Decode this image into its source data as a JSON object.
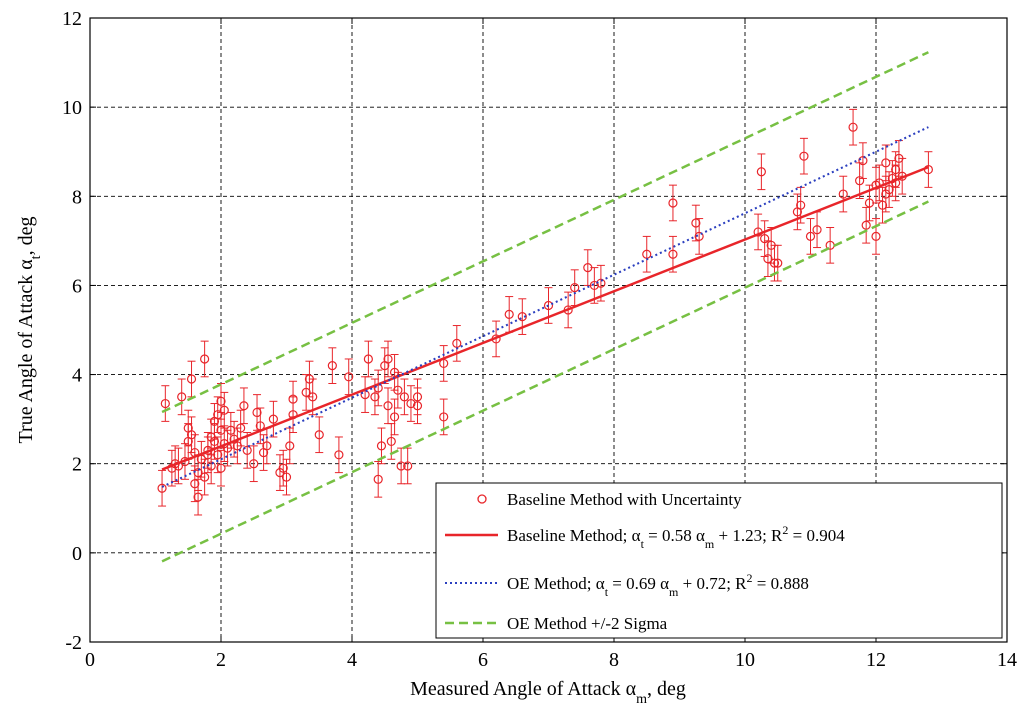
{
  "chart_data": {
    "type": "scatter",
    "title": "",
    "xlabel": "Measured Angle of Attack α",
    "xlabel_sub": "m",
    "xlabel_suffix": ", deg",
    "ylabel": "True Angle of Attack α",
    "ylabel_sub": "t",
    "ylabel_suffix": ", deg",
    "xlim": [
      0,
      14
    ],
    "ylim": [
      -2,
      12
    ],
    "xticks": [
      0,
      2,
      4,
      6,
      8,
      10,
      12,
      14
    ],
    "yticks": [
      -2,
      0,
      2,
      4,
      6,
      8,
      10,
      12
    ],
    "grid": true,
    "legend_position": "bottom-right",
    "colors": {
      "baseline": "#e8252a",
      "oe": "#2b3fbf",
      "sigma": "#77c043",
      "grid": "#000000"
    },
    "legend": [
      {
        "key": "points",
        "text": "Baseline Method with Uncertainty"
      },
      {
        "key": "baseline",
        "text": "Baseline Method; α = 0.58 α + 1.23; R = 0.904",
        "segments": [
          "Baseline Method; α",
          "t",
          " =   0.58 α",
          "m",
          " +   1.23; R",
          "2",
          " =  0.904"
        ]
      },
      {
        "key": "oe",
        "text": "OE Method; α = 0.69 α + 0.72; R = 0.888",
        "segments": [
          "OE Method; α",
          "t",
          " =   0.69 α",
          "m",
          " +   0.72; R",
          "2",
          " =  0.888"
        ]
      },
      {
        "key": "sigma",
        "text": "OE Method +/-2 Sigma"
      }
    ],
    "series": [
      {
        "name": "Baseline Method with Uncertainty",
        "style": "circle-errorbar",
        "error": 0.4,
        "points": [
          [
            1.1,
            1.45
          ],
          [
            1.15,
            3.35
          ],
          [
            1.25,
            1.9
          ],
          [
            1.3,
            2.0
          ],
          [
            1.35,
            1.95
          ],
          [
            1.4,
            3.5
          ],
          [
            1.45,
            2.05
          ],
          [
            1.5,
            2.5
          ],
          [
            1.5,
            2.8
          ],
          [
            1.55,
            2.65
          ],
          [
            1.55,
            3.9
          ],
          [
            1.6,
            1.55
          ],
          [
            1.6,
            2.25
          ],
          [
            1.65,
            1.25
          ],
          [
            1.65,
            1.8
          ],
          [
            1.7,
            2.1
          ],
          [
            1.75,
            4.35
          ],
          [
            1.75,
            1.7
          ],
          [
            1.8,
            2.3
          ],
          [
            1.8,
            2.2
          ],
          [
            1.85,
            2.6
          ],
          [
            1.85,
            1.95
          ],
          [
            1.9,
            2.5
          ],
          [
            1.9,
            2.95
          ],
          [
            1.95,
            3.1
          ],
          [
            1.95,
            2.2
          ],
          [
            2.0,
            3.4
          ],
          [
            2.0,
            2.75
          ],
          [
            2.0,
            1.9
          ],
          [
            2.05,
            2.45
          ],
          [
            2.05,
            3.2
          ],
          [
            2.1,
            2.35
          ],
          [
            2.15,
            2.75
          ],
          [
            2.2,
            2.55
          ],
          [
            2.25,
            2.4
          ],
          [
            2.3,
            2.8
          ],
          [
            2.35,
            3.3
          ],
          [
            2.4,
            2.3
          ],
          [
            2.5,
            2.0
          ],
          [
            2.55,
            3.15
          ],
          [
            2.6,
            2.85
          ],
          [
            2.65,
            2.25
          ],
          [
            2.7,
            2.4
          ],
          [
            2.8,
            3.0
          ],
          [
            2.9,
            1.8
          ],
          [
            2.95,
            1.9
          ],
          [
            3.0,
            1.7
          ],
          [
            3.05,
            2.4
          ],
          [
            3.1,
            3.1
          ],
          [
            3.1,
            3.45
          ],
          [
            3.3,
            3.6
          ],
          [
            3.35,
            3.9
          ],
          [
            3.4,
            3.5
          ],
          [
            3.5,
            2.65
          ],
          [
            3.7,
            4.2
          ],
          [
            3.8,
            2.2
          ],
          [
            3.95,
            3.95
          ],
          [
            4.2,
            3.55
          ],
          [
            4.25,
            4.35
          ],
          [
            4.35,
            3.5
          ],
          [
            4.4,
            3.7
          ],
          [
            4.4,
            1.65
          ],
          [
            4.45,
            2.4
          ],
          [
            4.5,
            4.2
          ],
          [
            4.55,
            4.35
          ],
          [
            4.55,
            3.3
          ],
          [
            4.6,
            2.5
          ],
          [
            4.65,
            3.05
          ],
          [
            4.65,
            4.05
          ],
          [
            4.7,
            3.65
          ],
          [
            4.75,
            1.95
          ],
          [
            4.8,
            3.5
          ],
          [
            4.85,
            1.95
          ],
          [
            4.9,
            3.35
          ],
          [
            5.0,
            3.5
          ],
          [
            5.0,
            3.3
          ],
          [
            5.4,
            4.25
          ],
          [
            5.4,
            3.05
          ],
          [
            5.6,
            4.7
          ],
          [
            6.2,
            4.8
          ],
          [
            6.4,
            5.35
          ],
          [
            6.6,
            5.3
          ],
          [
            7.0,
            5.55
          ],
          [
            7.3,
            5.45
          ],
          [
            7.4,
            5.95
          ],
          [
            7.6,
            6.4
          ],
          [
            7.7,
            6.0
          ],
          [
            7.8,
            6.05
          ],
          [
            8.5,
            6.7
          ],
          [
            8.9,
            6.7
          ],
          [
            8.9,
            7.85
          ],
          [
            9.25,
            7.4
          ],
          [
            9.3,
            7.1
          ],
          [
            10.2,
            7.2
          ],
          [
            10.25,
            8.55
          ],
          [
            10.3,
            7.05
          ],
          [
            10.35,
            6.6
          ],
          [
            10.4,
            6.9
          ],
          [
            10.45,
            6.5
          ],
          [
            10.5,
            6.5
          ],
          [
            10.8,
            7.65
          ],
          [
            10.85,
            7.8
          ],
          [
            10.9,
            8.9
          ],
          [
            11.0,
            7.1
          ],
          [
            11.1,
            7.25
          ],
          [
            11.3,
            6.9
          ],
          [
            11.5,
            8.05
          ],
          [
            11.65,
            9.55
          ],
          [
            11.75,
            8.35
          ],
          [
            11.8,
            8.8
          ],
          [
            11.85,
            7.35
          ],
          [
            11.9,
            7.85
          ],
          [
            12.0,
            8.25
          ],
          [
            12.0,
            7.1
          ],
          [
            12.05,
            8.3
          ],
          [
            12.1,
            7.8
          ],
          [
            12.15,
            8.05
          ],
          [
            12.15,
            8.75
          ],
          [
            12.2,
            8.15
          ],
          [
            12.25,
            8.4
          ],
          [
            12.3,
            8.6
          ],
          [
            12.3,
            8.3
          ],
          [
            12.35,
            8.85
          ],
          [
            12.4,
            8.45
          ],
          [
            12.8,
            8.6
          ]
        ]
      },
      {
        "name": "Baseline Method",
        "style": "solid",
        "slope": 0.58,
        "intercept": 1.23,
        "x_range": [
          1.1,
          12.8
        ]
      },
      {
        "name": "OE Method",
        "style": "dotted",
        "slope": 0.69,
        "intercept": 0.72,
        "x_range": [
          1.1,
          12.8
        ]
      },
      {
        "name": "OE Method +/-2 Sigma",
        "style": "dashed",
        "lines": [
          {
            "slope": 0.69,
            "intercept": 2.4,
            "x_range": [
              1.1,
              12.8
            ]
          },
          {
            "slope": 0.69,
            "intercept": -0.95,
            "x_range": [
              1.1,
              12.8
            ]
          }
        ]
      }
    ]
  }
}
